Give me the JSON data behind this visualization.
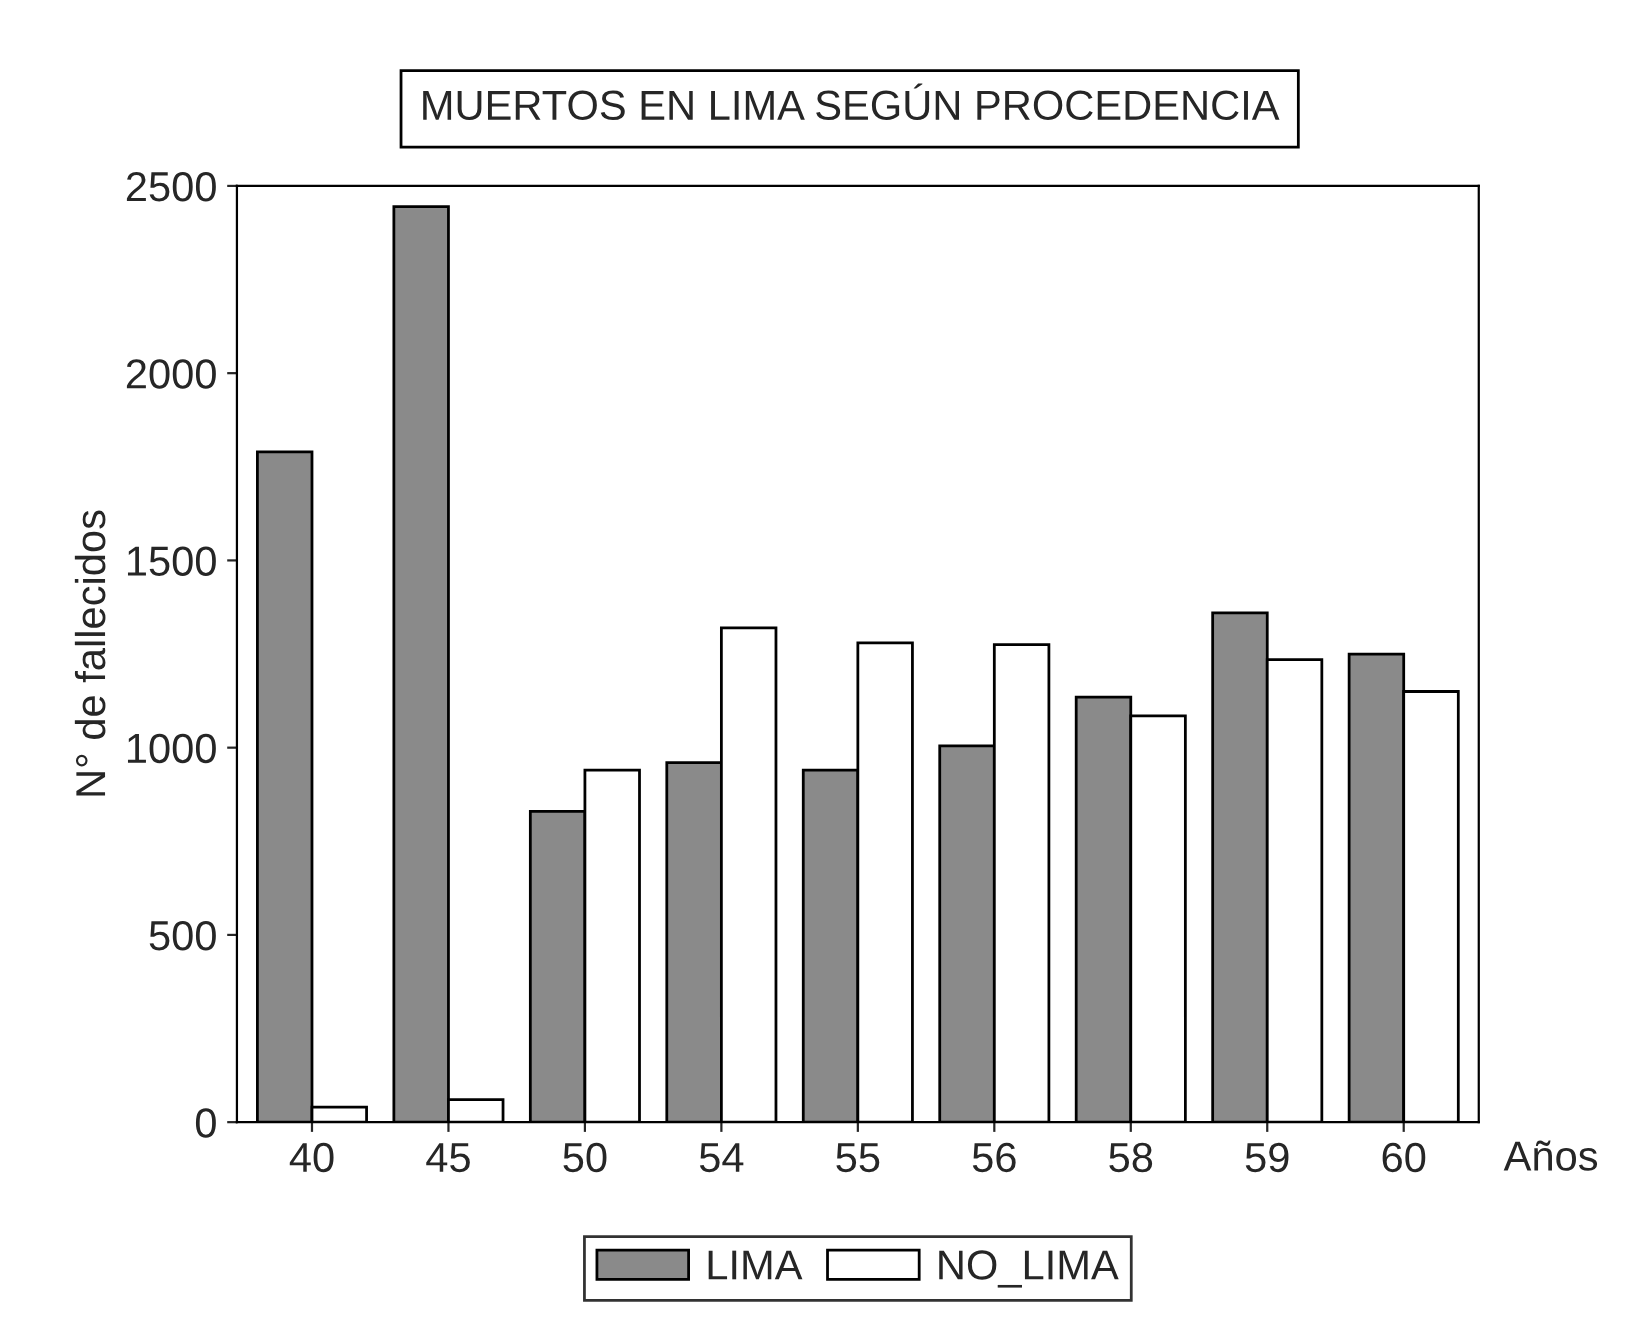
{
  "chart_data": {
    "type": "bar",
    "title": "MUERTOS EN LIMA SEGÚN PROCEDENCIA",
    "xlabel": "Años",
    "ylabel": "N° de fallecidos",
    "categories": [
      "40",
      "45",
      "50",
      "54",
      "55",
      "56",
      "58",
      "59",
      "60"
    ],
    "series": [
      {
        "name": "LIMA",
        "color": "#8a8a8a",
        "values": [
          1790,
          2445,
          830,
          960,
          940,
          1005,
          1135,
          1360,
          1250
        ]
      },
      {
        "name": "NO_LIMA",
        "color": "#ffffff",
        "values": [
          40,
          60,
          940,
          1320,
          1280,
          1275,
          1085,
          1235,
          1150
        ]
      }
    ],
    "ylim": [
      0,
      2500
    ],
    "yticks": [
      0,
      500,
      1000,
      1500,
      2000,
      2500
    ],
    "grid": false,
    "legend": "bottom"
  }
}
